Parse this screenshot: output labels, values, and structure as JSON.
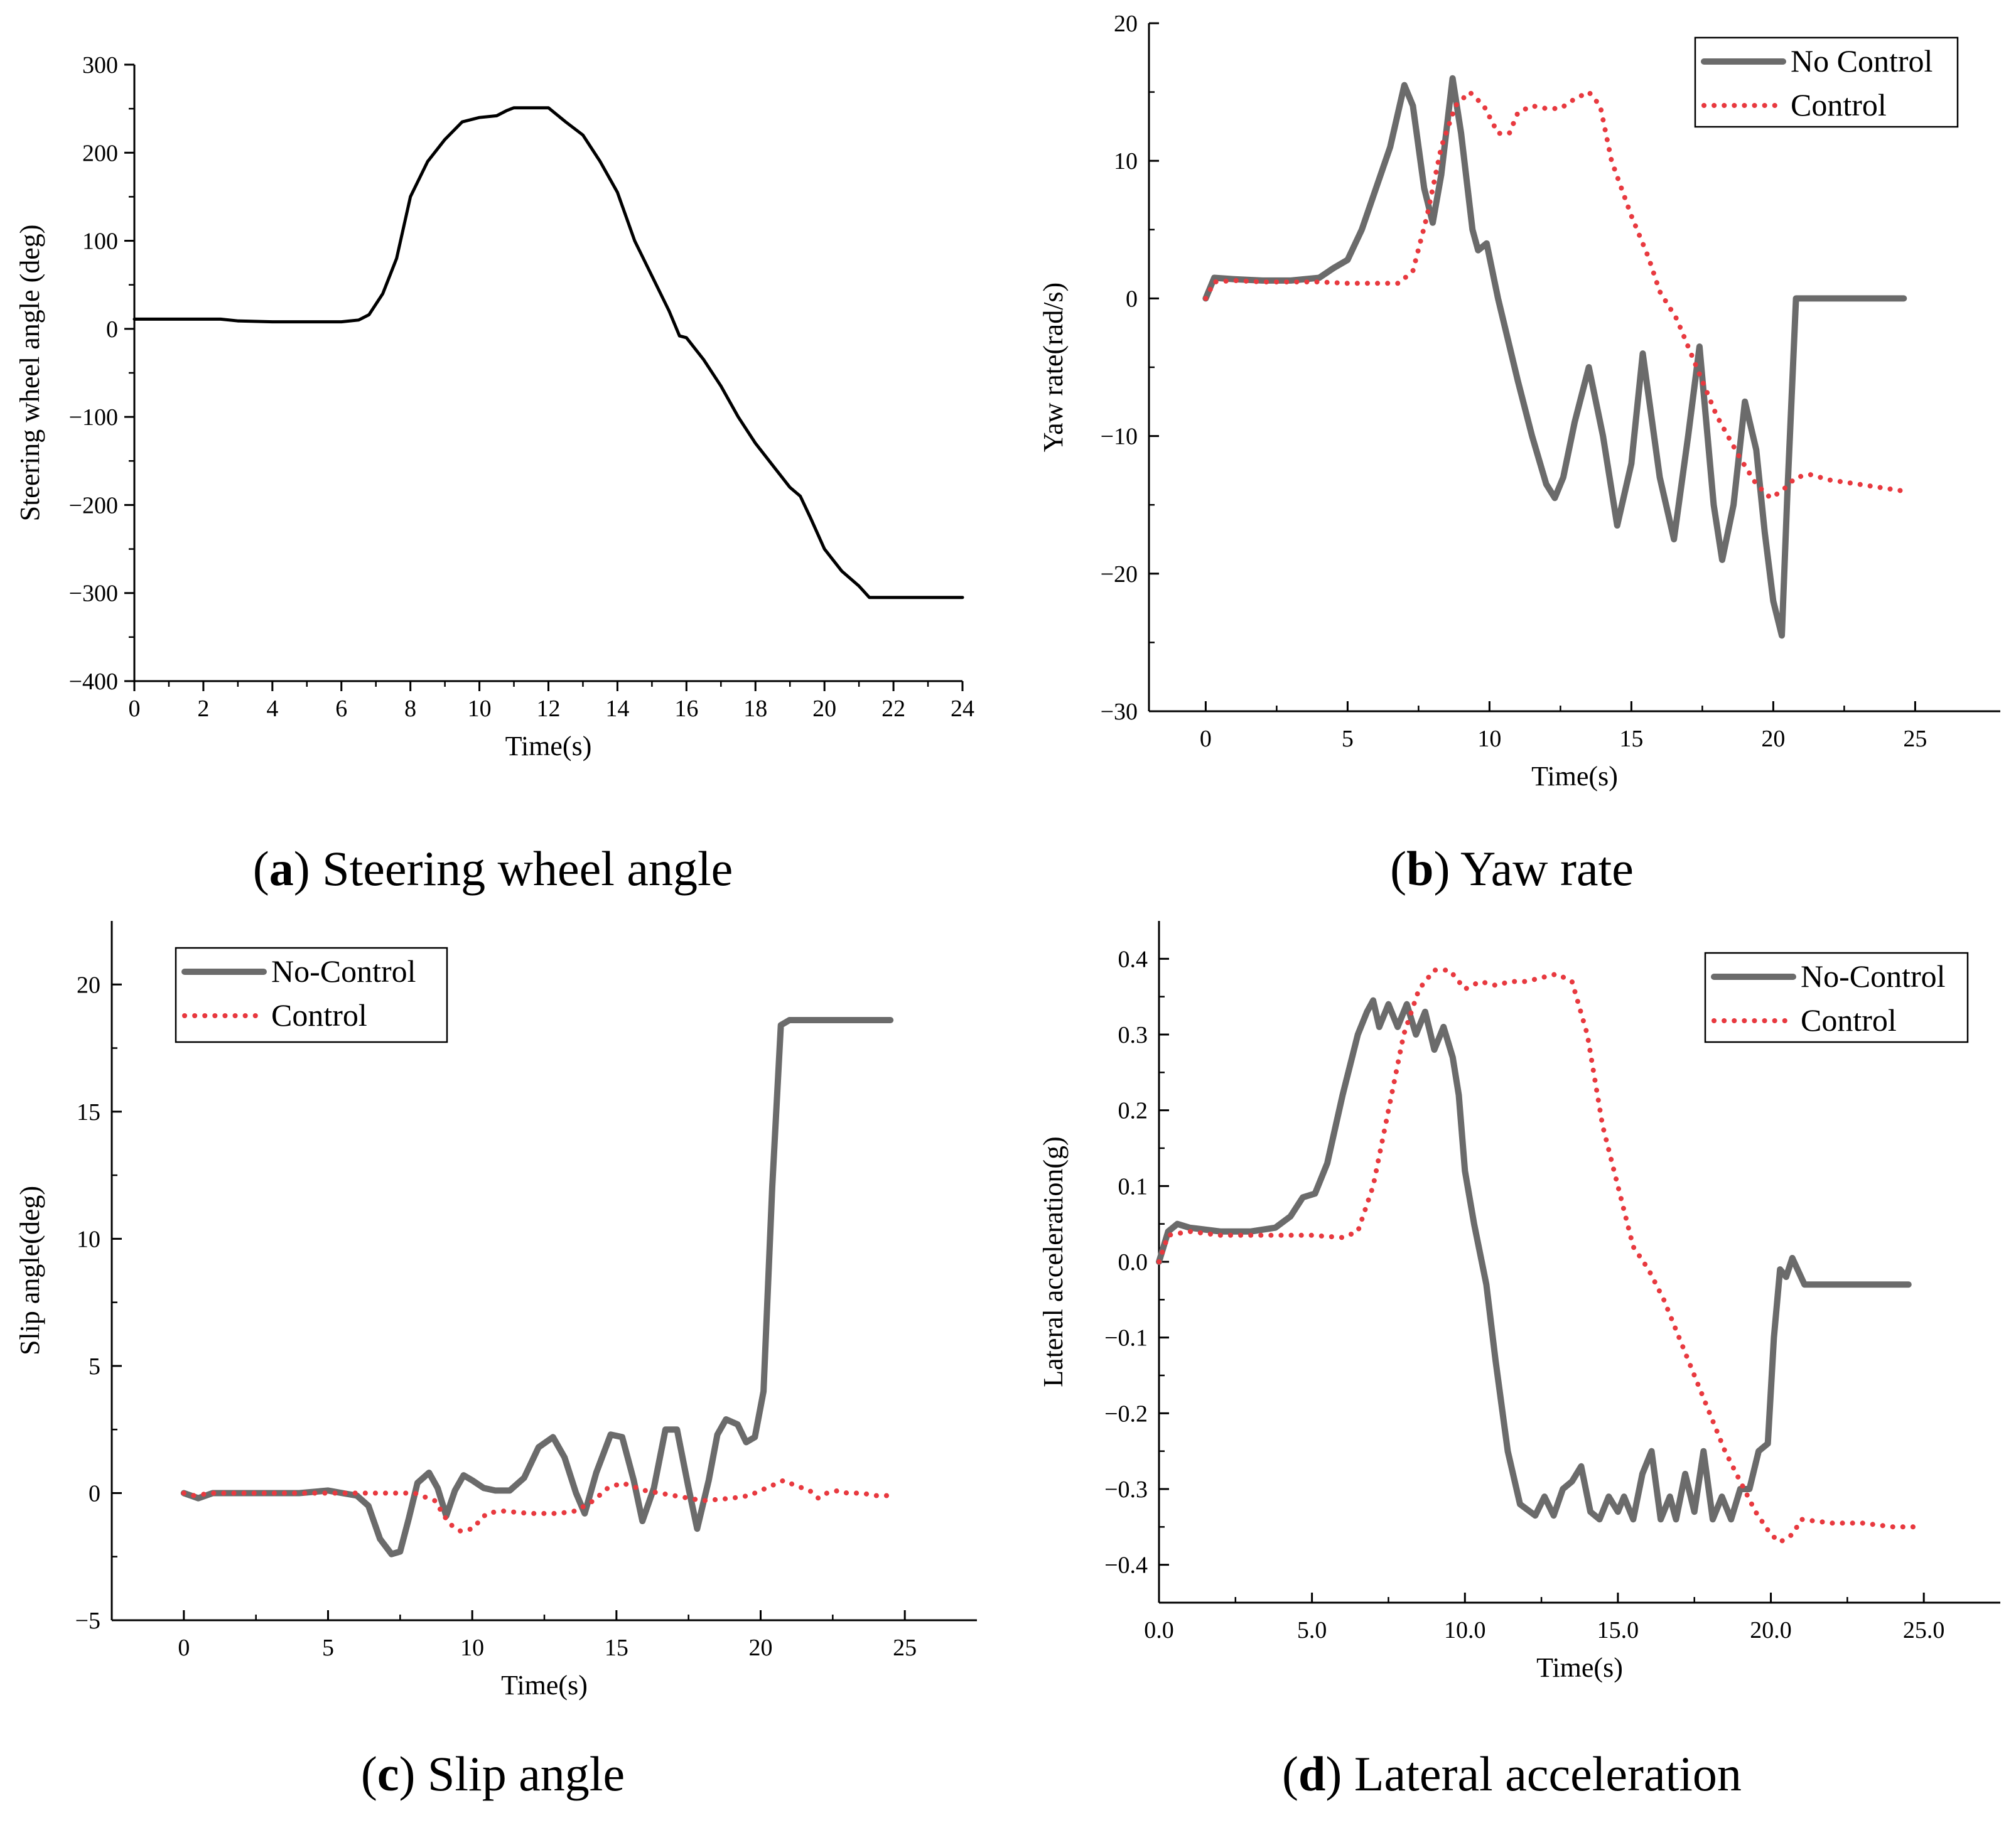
{
  "colors": {
    "no_control": "#6b6b6b",
    "control": "#e8393f",
    "steering": "#000000"
  },
  "captions": [
    {
      "letter": "a",
      "text": " Steering wheel angle"
    },
    {
      "letter": "b",
      "text": " Yaw rate"
    },
    {
      "letter": "c",
      "text": " Slip angle"
    },
    {
      "letter": "d",
      "text": " Lateral acceleration"
    }
  ],
  "chart_data": [
    {
      "id": "a",
      "type": "line",
      "xlabel": "Time(s)",
      "ylabel": "Steering wheel angle (deg)",
      "xlim": [
        0,
        24
      ],
      "ylim": [
        -400,
        300
      ],
      "xticks": [
        0,
        2,
        4,
        6,
        8,
        10,
        12,
        14,
        16,
        18,
        20,
        22,
        24
      ],
      "yticks": [
        -400,
        -300,
        -200,
        -100,
        0,
        100,
        200,
        300
      ],
      "legend": [],
      "series": [
        {
          "name": "",
          "color_key": "steering",
          "style": "solid",
          "x": [
            0,
            2.5,
            3,
            4,
            5,
            6,
            6.5,
            6.8,
            7.2,
            7.6,
            8,
            8.5,
            9,
            9.5,
            10,
            10.5,
            10.8,
            11,
            11.5,
            12,
            12.5,
            13,
            13.5,
            14,
            14.5,
            15,
            15.5,
            15.8,
            16,
            16.5,
            17,
            17.5,
            18,
            18.5,
            19,
            19.3,
            19.6,
            20,
            20.5,
            21,
            21.3,
            22,
            24
          ],
          "y": [
            11,
            11,
            9,
            8,
            8,
            8,
            10,
            16,
            40,
            80,
            150,
            190,
            215,
            235,
            240,
            242,
            248,
            251,
            251,
            251,
            235,
            220,
            190,
            155,
            100,
            60,
            20,
            -8,
            -10,
            -35,
            -65,
            -100,
            -130,
            -155,
            -180,
            -190,
            -215,
            -250,
            -275,
            -292,
            -305,
            -305,
            -305
          ]
        }
      ]
    },
    {
      "id": "b",
      "type": "line",
      "xlabel": "Time(s)",
      "ylabel": "Yaw rate(rad/s)",
      "xlim": [
        -2,
        28
      ],
      "ylim": [
        -30,
        20
      ],
      "xticks": [
        0,
        5,
        10,
        15,
        20,
        25
      ],
      "yticks": [
        -30,
        -20,
        -10,
        0,
        10,
        20
      ],
      "legend": [
        "No Control",
        "Control"
      ],
      "series": [
        {
          "name": "No Control",
          "color_key": "no_control",
          "style": "solid",
          "x": [
            0,
            0.3,
            1,
            2,
            3,
            4,
            4.5,
            5,
            5.5,
            6,
            6.5,
            7,
            7.3,
            7.7,
            8,
            8.3,
            8.7,
            9,
            9.4,
            9.6,
            9.9,
            10.3,
            11,
            11.5,
            12,
            12.3,
            12.6,
            13,
            13.5,
            14,
            14.5,
            15,
            15.4,
            16,
            16.5,
            17,
            17.4,
            17.9,
            18.2,
            18.6,
            19,
            19.4,
            19.7,
            20,
            20.3,
            20.5,
            20.8,
            21.5,
            24.6
          ],
          "y": [
            0,
            1.5,
            1.4,
            1.3,
            1.3,
            1.5,
            2.2,
            2.8,
            5,
            8,
            11,
            15.5,
            14,
            8,
            5.5,
            9,
            16,
            12,
            5,
            3.5,
            4,
            0,
            -6,
            -10,
            -13.5,
            -14.5,
            -13,
            -9,
            -5,
            -10,
            -16.5,
            -12,
            -4,
            -13,
            -17.5,
            -10,
            -3.5,
            -15,
            -19,
            -15,
            -7.5,
            -11,
            -17,
            -22,
            -24.5,
            -14,
            0,
            0,
            0
          ]
        },
        {
          "name": "Control",
          "color_key": "control",
          "style": "dotted",
          "x": [
            0,
            0.3,
            1,
            2,
            3,
            4,
            5,
            6,
            6.8,
            7.3,
            7.8,
            8.3,
            8.8,
            9.3,
            9.8,
            10.3,
            10.7,
            11,
            11.5,
            12,
            12.5,
            13,
            13.5,
            13.9,
            14.3,
            15,
            15.6,
            16,
            16.6,
            17.2,
            18,
            18.8,
            19.4,
            19.9,
            20.3,
            20.8,
            21.3,
            22,
            23,
            24.6
          ],
          "y": [
            0,
            1.2,
            1.3,
            1.2,
            1.2,
            1.2,
            1.1,
            1.1,
            1.1,
            2,
            6,
            11,
            14,
            15,
            14,
            12,
            12,
            13.5,
            14,
            13.8,
            13.8,
            14.5,
            15,
            14,
            10,
            6,
            3,
            0.5,
            -1.5,
            -4.5,
            -8.5,
            -11.5,
            -13.5,
            -14.5,
            -14,
            -13,
            -12.8,
            -13.2,
            -13.5,
            -14
          ]
        }
      ]
    },
    {
      "id": "c",
      "type": "line",
      "xlabel": "Time(s)",
      "ylabel": "Slip angle(deg)",
      "xlim": [
        -2.5,
        27.5
      ],
      "ylim": [
        -5,
        22.5
      ],
      "xticks": [
        0,
        5,
        10,
        15,
        20,
        25
      ],
      "yticks": [
        -5,
        0,
        5,
        10,
        15,
        20
      ],
      "legend": [
        "No-Control",
        "Control"
      ],
      "series": [
        {
          "name": "No-Control",
          "color_key": "no_control",
          "style": "solid",
          "x": [
            0,
            0.5,
            1,
            2,
            3,
            4,
            5,
            5.5,
            6,
            6.4,
            6.8,
            7.2,
            7.5,
            7.8,
            8.1,
            8.5,
            8.8,
            9.1,
            9.4,
            9.7,
            10,
            10.4,
            10.8,
            11.3,
            11.8,
            12.3,
            12.8,
            13.2,
            13.6,
            13.9,
            14.3,
            14.8,
            15.2,
            15.6,
            15.9,
            16.3,
            16.7,
            17.1,
            17.5,
            17.8,
            18.2,
            18.5,
            18.8,
            19.2,
            19.5,
            19.8,
            20.1,
            20.4,
            20.7,
            21,
            24.5
          ],
          "y": [
            0,
            -0.2,
            0,
            0,
            0,
            0,
            0.1,
            0,
            -0.1,
            -0.5,
            -1.8,
            -2.4,
            -2.3,
            -1,
            0.4,
            0.8,
            0.2,
            -0.9,
            0.1,
            0.7,
            0.5,
            0.2,
            0.1,
            0.1,
            0.6,
            1.8,
            2.2,
            1.4,
            0,
            -0.8,
            0.8,
            2.3,
            2.2,
            0.5,
            -1.1,
            0.2,
            2.5,
            2.5,
            0.2,
            -1.4,
            0.5,
            2.3,
            2.9,
            2.7,
            2,
            2.2,
            4,
            12,
            18.4,
            18.6,
            18.6
          ]
        },
        {
          "name": "Control",
          "color_key": "control",
          "style": "dotted",
          "x": [
            0,
            0.3,
            1,
            2,
            3,
            4,
            5,
            6,
            7,
            8,
            8.7,
            9.2,
            9.6,
            10,
            10.5,
            11,
            12,
            13,
            13.6,
            14.2,
            14.7,
            15.2,
            16,
            17,
            17.5,
            18,
            19,
            19.6,
            20,
            20.4,
            20.8,
            21.2,
            21.7,
            22,
            22.3,
            22.7,
            23,
            23.5,
            24,
            24.5
          ],
          "y": [
            0,
            -0.1,
            0,
            0,
            0,
            0,
            0,
            0,
            0,
            0,
            -0.3,
            -1.2,
            -1.5,
            -1.4,
            -0.8,
            -0.7,
            -0.8,
            -0.8,
            -0.7,
            -0.3,
            0.2,
            0.4,
            0.1,
            -0.1,
            -0.2,
            -0.3,
            -0.2,
            -0.1,
            0.1,
            0.3,
            0.5,
            0.3,
            0.1,
            -0.2,
            0,
            0.1,
            0,
            0,
            -0.1,
            -0.1
          ]
        }
      ]
    },
    {
      "id": "d",
      "type": "line",
      "xlabel": "Time(s)",
      "ylabel": "Lateral acceleration(g)",
      "xlim": [
        0,
        27.5
      ],
      "ylim": [
        -0.45,
        0.45
      ],
      "xticks": [
        0,
        5,
        10,
        15,
        20,
        25
      ],
      "yticks": [
        -0.4,
        -0.3,
        -0.2,
        -0.1,
        0.0,
        0.1,
        0.2,
        0.3,
        0.4
      ],
      "legend": [
        "No-Control",
        "Control"
      ],
      "series": [
        {
          "name": "No-Control",
          "color_key": "no_control",
          "style": "solid",
          "x": [
            0,
            0.3,
            0.6,
            1,
            2,
            3,
            3.8,
            4.3,
            4.7,
            5.1,
            5.5,
            6,
            6.5,
            6.8,
            7,
            7.2,
            7.5,
            7.8,
            8.1,
            8.4,
            8.7,
            9,
            9.3,
            9.6,
            9.8,
            10,
            10.3,
            10.7,
            11,
            11.4,
            11.8,
            12.3,
            12.6,
            12.9,
            13.2,
            13.5,
            13.8,
            14.1,
            14.4,
            14.7,
            15,
            15.2,
            15.5,
            15.8,
            16.1,
            16.4,
            16.7,
            16.9,
            17.2,
            17.5,
            17.8,
            18.1,
            18.4,
            18.7,
            19,
            19.3,
            19.6,
            19.9,
            20.1,
            20.3,
            20.5,
            20.7,
            21.1,
            24.5
          ],
          "y": [
            0,
            0.04,
            0.05,
            0.045,
            0.04,
            0.04,
            0.045,
            0.06,
            0.085,
            0.09,
            0.13,
            0.22,
            0.3,
            0.33,
            0.345,
            0.31,
            0.34,
            0.31,
            0.34,
            0.3,
            0.33,
            0.28,
            0.31,
            0.27,
            0.22,
            0.12,
            0.05,
            -0.03,
            -0.13,
            -0.25,
            -0.32,
            -0.335,
            -0.31,
            -0.335,
            -0.3,
            -0.29,
            -0.27,
            -0.33,
            -0.34,
            -0.31,
            -0.33,
            -0.31,
            -0.34,
            -0.28,
            -0.25,
            -0.34,
            -0.31,
            -0.34,
            -0.28,
            -0.33,
            -0.25,
            -0.34,
            -0.31,
            -0.34,
            -0.3,
            -0.3,
            -0.25,
            -0.24,
            -0.1,
            -0.01,
            -0.02,
            0.005,
            -0.03,
            -0.03
          ]
        },
        {
          "name": "Control",
          "color_key": "control",
          "style": "dotted",
          "x": [
            0,
            0.3,
            1,
            2,
            3,
            4,
            5,
            6,
            6.5,
            7,
            7.5,
            8,
            8.5,
            9,
            9.5,
            10,
            10.5,
            11,
            11.5,
            12,
            12.5,
            13,
            13.5,
            14,
            14.5,
            15,
            15.5,
            16,
            16.5,
            17,
            17.5,
            18,
            18.5,
            19,
            19.5,
            20,
            20.3,
            20.7,
            21,
            22,
            23,
            24,
            24.8
          ],
          "y": [
            0,
            0.035,
            0.04,
            0.035,
            0.035,
            0.035,
            0.035,
            0.032,
            0.04,
            0.1,
            0.2,
            0.3,
            0.36,
            0.385,
            0.385,
            0.36,
            0.37,
            0.365,
            0.37,
            0.37,
            0.375,
            0.38,
            0.37,
            0.3,
            0.18,
            0.1,
            0.02,
            -0.01,
            -0.05,
            -0.1,
            -0.15,
            -0.2,
            -0.25,
            -0.29,
            -0.33,
            -0.36,
            -0.37,
            -0.36,
            -0.34,
            -0.345,
            -0.345,
            -0.35,
            -0.35
          ]
        }
      ]
    }
  ]
}
